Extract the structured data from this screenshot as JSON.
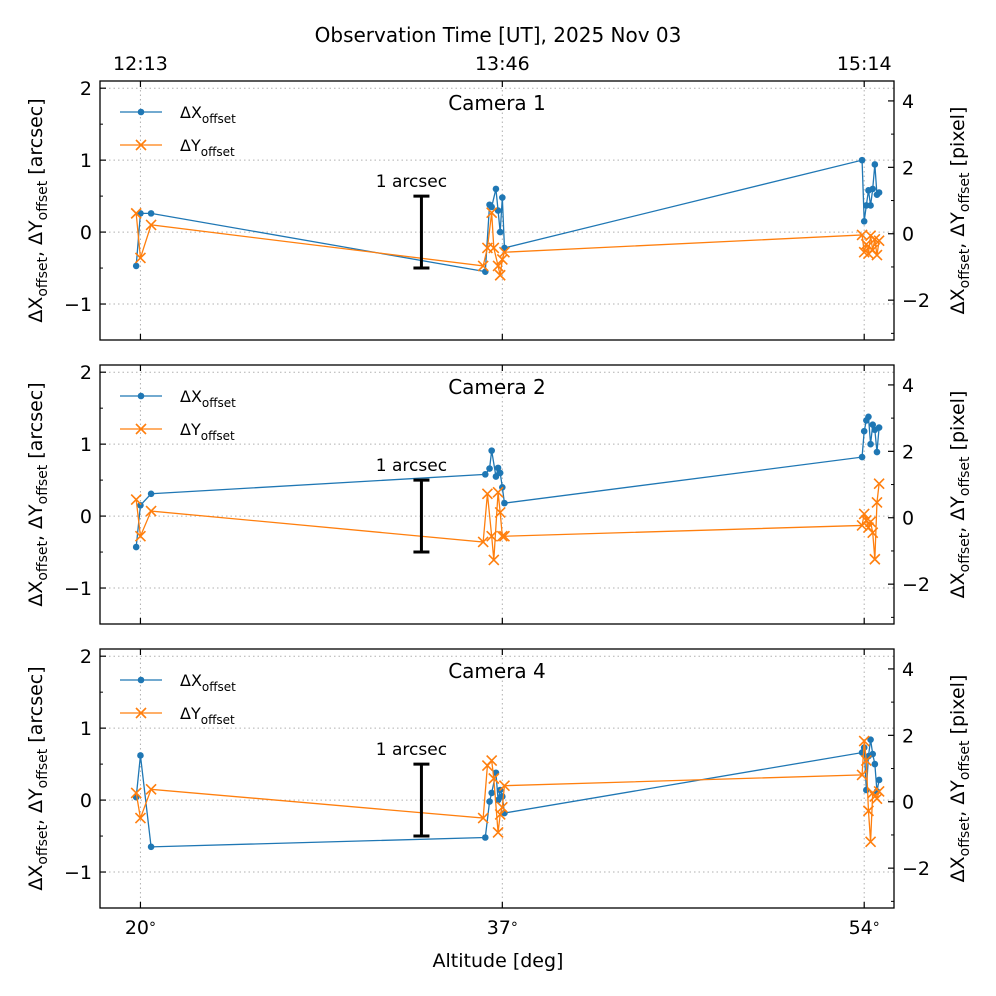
{
  "chart_data": {
    "type": "line",
    "title": "Observation Time [UT], 2025 Nov 03",
    "xlabel": "Altitude [deg]",
    "xlim": [
      18.1,
      55.4
    ],
    "x_ticks": [
      20,
      37,
      54
    ],
    "x_tick_labels": [
      "20$^\\circ$",
      "37$^\\circ$",
      "54$^\\circ$"
    ],
    "x_tick_display": [
      "20",
      "37",
      "54"
    ],
    "degree_symbol": "°",
    "top_ticks": [
      20,
      37,
      54
    ],
    "top_tick_labels": [
      "12:13",
      "13:46",
      "15:14"
    ],
    "ylabel_left": {
      "prefix": "ΔX",
      "mid": ", ΔY",
      "sub": "offset",
      "unit": " [arcsec]"
    },
    "ylabel_right": {
      "prefix": "ΔX",
      "mid": ", ΔY",
      "sub": "offset",
      "unit": " [pixel]"
    },
    "ylim_left": [
      -1.5,
      2.1
    ],
    "ylim_right": [
      -3.2,
      4.6
    ],
    "y_ticks_left": [
      -1,
      0,
      1,
      2
    ],
    "y_tick_labels_left": [
      "−1",
      "0",
      "1",
      "2"
    ],
    "y_ticks_right": [
      -2,
      0,
      2,
      4
    ],
    "y_tick_labels_right": [
      "−2",
      "0",
      "2",
      "4"
    ],
    "grid": true,
    "legend": {
      "location": "top-left",
      "entries": [
        {
          "symbol": "Δ",
          "main": "X",
          "sub": "offset",
          "color": "#1f77b4",
          "marker": "circle"
        },
        {
          "symbol": "Δ",
          "main": "Y",
          "sub": "offset",
          "color": "#ff7f0e",
          "marker": "x"
        }
      ]
    },
    "scale_bar": {
      "label": "1 arcsec",
      "x": 33.2,
      "y_from": -0.5,
      "y_to": 0.5
    },
    "panels": [
      {
        "name": "Camera 1",
        "series": [
          {
            "name": "ΔX_offset",
            "color": "#1f77b4",
            "marker": "circle",
            "x": [
              19.8,
              20.0,
              20.5,
              36.2,
              36.4,
              36.5,
              36.7,
              36.8,
              36.9,
              37.0,
              37.1,
              53.9,
              54.0,
              54.1,
              54.2,
              54.3,
              54.4,
              54.5,
              54.6,
              54.7
            ],
            "y": [
              -0.47,
              0.26,
              0.26,
              -0.55,
              0.38,
              0.35,
              0.6,
              0.3,
              0.0,
              0.48,
              -0.22,
              1.0,
              0.15,
              0.37,
              0.58,
              0.37,
              0.6,
              0.94,
              0.52,
              0.55
            ]
          },
          {
            "name": "ΔY_offset",
            "color": "#ff7f0e",
            "marker": "x",
            "x": [
              19.8,
              20.0,
              20.5,
              36.1,
              36.3,
              36.5,
              36.6,
              36.8,
              36.9,
              37.0,
              37.1,
              53.9,
              54.0,
              54.1,
              54.2,
              54.3,
              54.4,
              54.5,
              54.6,
              54.7
            ],
            "y": [
              0.26,
              -0.36,
              0.1,
              -0.47,
              -0.22,
              0.27,
              -0.22,
              -0.47,
              -0.6,
              -0.38,
              -0.28,
              -0.04,
              -0.28,
              -0.17,
              -0.3,
              -0.05,
              -0.25,
              -0.1,
              -0.32,
              -0.12
            ]
          }
        ]
      },
      {
        "name": "Camera 2",
        "series": [
          {
            "name": "ΔX_offset",
            "color": "#1f77b4",
            "marker": "circle",
            "x": [
              19.8,
              20.0,
              20.5,
              36.2,
              36.4,
              36.5,
              36.7,
              36.8,
              36.9,
              37.0,
              37.1,
              53.9,
              54.0,
              54.1,
              54.2,
              54.3,
              54.4,
              54.5,
              54.6,
              54.7
            ],
            "y": [
              -0.43,
              0.15,
              0.31,
              0.58,
              0.66,
              0.91,
              0.55,
              0.67,
              0.6,
              0.4,
              0.18,
              0.82,
              1.18,
              1.33,
              1.38,
              1.0,
              1.27,
              1.2,
              0.89,
              1.23
            ]
          },
          {
            "name": "ΔY_offset",
            "color": "#ff7f0e",
            "marker": "x",
            "x": [
              19.8,
              20.0,
              20.5,
              36.1,
              36.3,
              36.5,
              36.6,
              36.8,
              36.9,
              37.0,
              37.1,
              53.9,
              54.0,
              54.1,
              54.2,
              54.3,
              54.4,
              54.5,
              54.6,
              54.7
            ],
            "y": [
              0.23,
              -0.28,
              0.07,
              -0.36,
              0.31,
              -0.28,
              -0.61,
              0.33,
              0.05,
              -0.28,
              -0.28,
              -0.13,
              0.03,
              -0.06,
              -0.16,
              -0.08,
              -0.23,
              -0.6,
              0.19,
              0.45
            ]
          }
        ]
      },
      {
        "name": "Camera 4",
        "series": [
          {
            "name": "ΔX_offset",
            "color": "#1f77b4",
            "marker": "circle",
            "x": [
              19.8,
              20.0,
              20.5,
              36.2,
              36.4,
              36.5,
              36.7,
              36.8,
              36.9,
              37.0,
              37.1,
              53.9,
              54.0,
              54.1,
              54.2,
              54.3,
              54.4,
              54.5,
              54.6,
              54.7
            ],
            "y": [
              0.04,
              0.62,
              -0.65,
              -0.52,
              -0.02,
              0.1,
              0.38,
              0.0,
              0.14,
              0.05,
              -0.18,
              0.66,
              0.73,
              0.14,
              0.61,
              0.84,
              0.64,
              0.5,
              0.12,
              0.28
            ]
          },
          {
            "name": "ΔY_offset",
            "color": "#ff7f0e",
            "marker": "x",
            "x": [
              19.8,
              20.0,
              20.5,
              36.1,
              36.3,
              36.5,
              36.6,
              36.8,
              36.9,
              37.0,
              37.1,
              53.9,
              54.0,
              54.1,
              54.2,
              54.3,
              54.4,
              54.5,
              54.6,
              54.7
            ],
            "y": [
              0.1,
              -0.25,
              0.15,
              -0.25,
              0.48,
              0.55,
              0.3,
              -0.45,
              -0.2,
              -0.1,
              0.2,
              0.35,
              0.82,
              0.55,
              -0.15,
              -0.58,
              0.1,
              0.05,
              0.02,
              0.12
            ]
          }
        ]
      }
    ]
  }
}
